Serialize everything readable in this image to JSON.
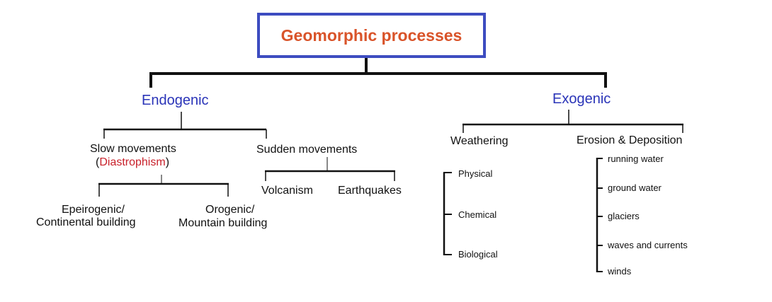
{
  "root": "Geomorphic processes",
  "endogenic": {
    "label": "Endogenic",
    "slow": {
      "line1": "Slow movements",
      "paren_open": "(",
      "diastrophism": "Diastrophism",
      "paren_close": ")"
    },
    "epeirogenic": {
      "line1": "Epeirogenic/",
      "line2": "Continental building"
    },
    "orogenic": {
      "line1": "Orogenic/",
      "line2": "Mountain building"
    },
    "sudden": "Sudden movements",
    "volcanism": "Volcanism",
    "earthquakes": "Earthquakes"
  },
  "exogenic": {
    "label": "Exogenic",
    "weathering": "Weathering",
    "weathering_items": [
      "Physical",
      "Chemical",
      "Biological"
    ],
    "erosion": {
      "part1": "Erosion",
      "amp": "&",
      "part2": "Deposition"
    },
    "erosion_items": [
      "running water",
      "ground water",
      "glaciers",
      "waves and currents",
      "winds"
    ]
  },
  "colors": {
    "root_border": "#3d4cc0",
    "root_text": "#d9542a",
    "main_text": "#2a34b8",
    "accent_red": "#c8202a",
    "lines": "#111111"
  }
}
